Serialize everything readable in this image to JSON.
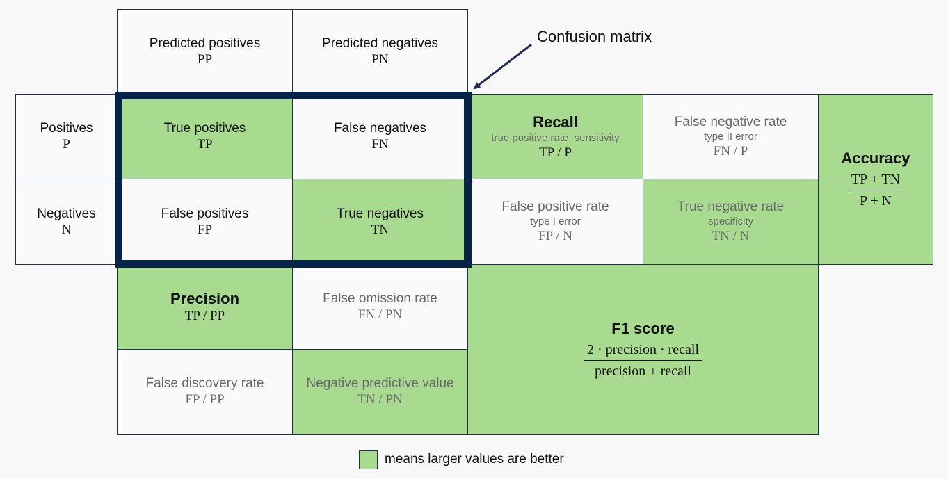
{
  "annotation": {
    "label": "Confusion matrix"
  },
  "legend": {
    "text": "means larger values are better",
    "color": "#a8da90"
  },
  "colors": {
    "better": "#a8da90",
    "neutral": "#fafafa",
    "frame": "#06234a"
  },
  "header": {
    "predicted_positive": {
      "name": "Predicted positives",
      "abbr": "PP"
    },
    "predicted_negative": {
      "name": "Predicted negatives",
      "abbr": "PN"
    },
    "positives": {
      "name": "Positives",
      "abbr": "P"
    },
    "negatives": {
      "name": "Negatives",
      "abbr": "N"
    }
  },
  "matrix": {
    "tp": {
      "name": "True positives",
      "abbr": "TP"
    },
    "fn": {
      "name": "False negatives",
      "abbr": "FN"
    },
    "fp": {
      "name": "False positives",
      "abbr": "FP"
    },
    "tn": {
      "name": "True negatives",
      "abbr": "TN"
    }
  },
  "metrics": {
    "recall": {
      "name": "Recall",
      "sub": "true positive rate, sensitivity",
      "formula": "TP / P"
    },
    "fnr": {
      "name": "False negative rate",
      "sub": "type II error",
      "formula": "FN / P"
    },
    "fpr": {
      "name": "False positive rate",
      "sub": "type I error",
      "formula": "FP / N"
    },
    "tnr": {
      "name": "True negative rate",
      "sub": "specificity",
      "formula": "TN / N"
    },
    "accuracy": {
      "name": "Accuracy",
      "numerator": "TP + TN",
      "denominator": "P + N"
    },
    "precision": {
      "name": "Precision",
      "formula": "TP / PP"
    },
    "for": {
      "name": "False omission rate",
      "formula": "FN / PN"
    },
    "fdr": {
      "name": "False discovery rate",
      "formula": "FP / PP"
    },
    "npv": {
      "name": "Negative predictive value",
      "formula": "TN / PN"
    },
    "f1": {
      "name": "F1 score",
      "numerator": "2 · precision · recall",
      "denominator": "precision + recall"
    }
  }
}
